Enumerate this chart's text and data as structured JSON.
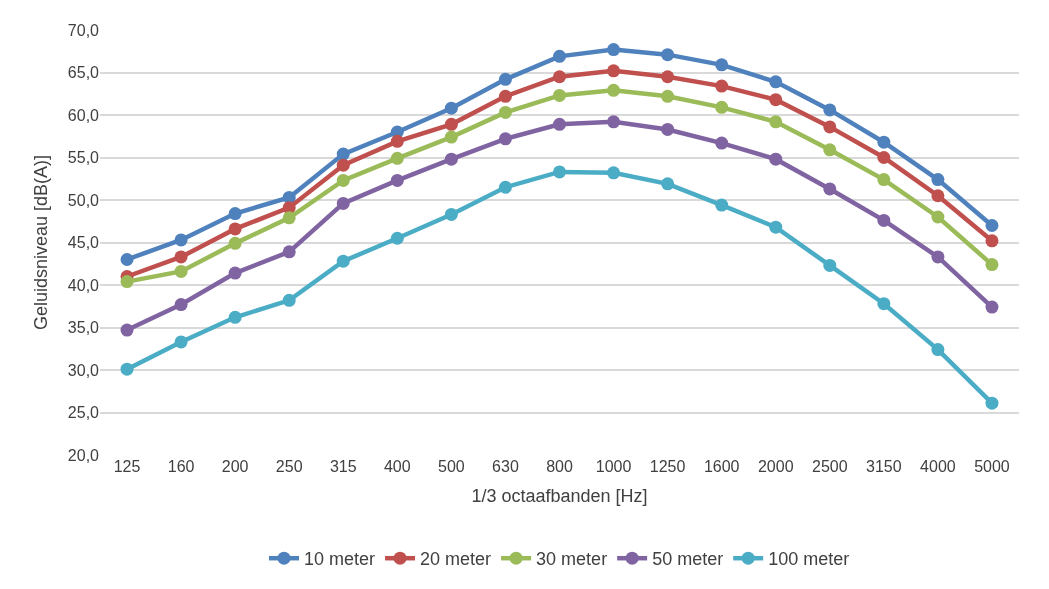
{
  "chart_data": {
    "type": "line",
    "xlabel": "1/3 octaafbanden [Hz]",
    "ylabel": "Geluidsniveau [dB(A)]",
    "categories": [
      "125",
      "160",
      "200",
      "250",
      "315",
      "400",
      "500",
      "630",
      "800",
      "1000",
      "1250",
      "1600",
      "2000",
      "2500",
      "3150",
      "4000",
      "5000"
    ],
    "series": [
      {
        "name": "10 meter",
        "color": "#4f81bd",
        "values": [
          43.0,
          45.3,
          48.4,
          50.3,
          55.4,
          58.0,
          60.8,
          64.2,
          66.9,
          67.7,
          67.1,
          65.9,
          63.9,
          60.6,
          56.8,
          52.4,
          47.0
        ]
      },
      {
        "name": "20 meter",
        "color": "#c0504d",
        "values": [
          41.0,
          43.3,
          46.6,
          49.1,
          54.1,
          56.9,
          58.9,
          62.2,
          64.5,
          65.2,
          64.5,
          63.4,
          61.8,
          58.6,
          55.0,
          50.5,
          45.2
        ]
      },
      {
        "name": "30 meter",
        "color": "#9bbb59",
        "values": [
          40.4,
          41.6,
          44.9,
          47.9,
          52.3,
          54.9,
          57.4,
          60.3,
          62.3,
          62.9,
          62.2,
          60.9,
          59.2,
          55.9,
          52.4,
          48.0,
          42.4
        ]
      },
      {
        "name": "50 meter",
        "color": "#8064a2",
        "values": [
          34.7,
          37.7,
          41.4,
          43.9,
          49.6,
          52.3,
          54.8,
          57.2,
          58.9,
          59.2,
          58.3,
          56.7,
          54.8,
          51.3,
          47.6,
          43.3,
          37.4
        ]
      },
      {
        "name": "100 meter",
        "color": "#4bacc6",
        "values": [
          30.1,
          33.3,
          36.2,
          38.2,
          42.8,
          45.5,
          48.3,
          51.5,
          53.3,
          53.2,
          51.9,
          49.4,
          46.8,
          42.3,
          37.8,
          32.4,
          26.1
        ]
      }
    ],
    "ylim": [
      20,
      70
    ],
    "yticks": [
      {
        "value": 20,
        "label": "20,0"
      },
      {
        "value": 25,
        "label": "25,0"
      },
      {
        "value": 30,
        "label": "30,0"
      },
      {
        "value": 35,
        "label": "35,0"
      },
      {
        "value": 40,
        "label": "40,0"
      },
      {
        "value": 45,
        "label": "45,0"
      },
      {
        "value": 50,
        "label": "50,0"
      },
      {
        "value": 55,
        "label": "55,0"
      },
      {
        "value": 60,
        "label": "60,0"
      },
      {
        "value": 65,
        "label": "65,0"
      },
      {
        "value": 70,
        "label": "70,0"
      }
    ],
    "grid": "y",
    "legend": "bottom",
    "marker": "circle",
    "line_style": "solid"
  }
}
